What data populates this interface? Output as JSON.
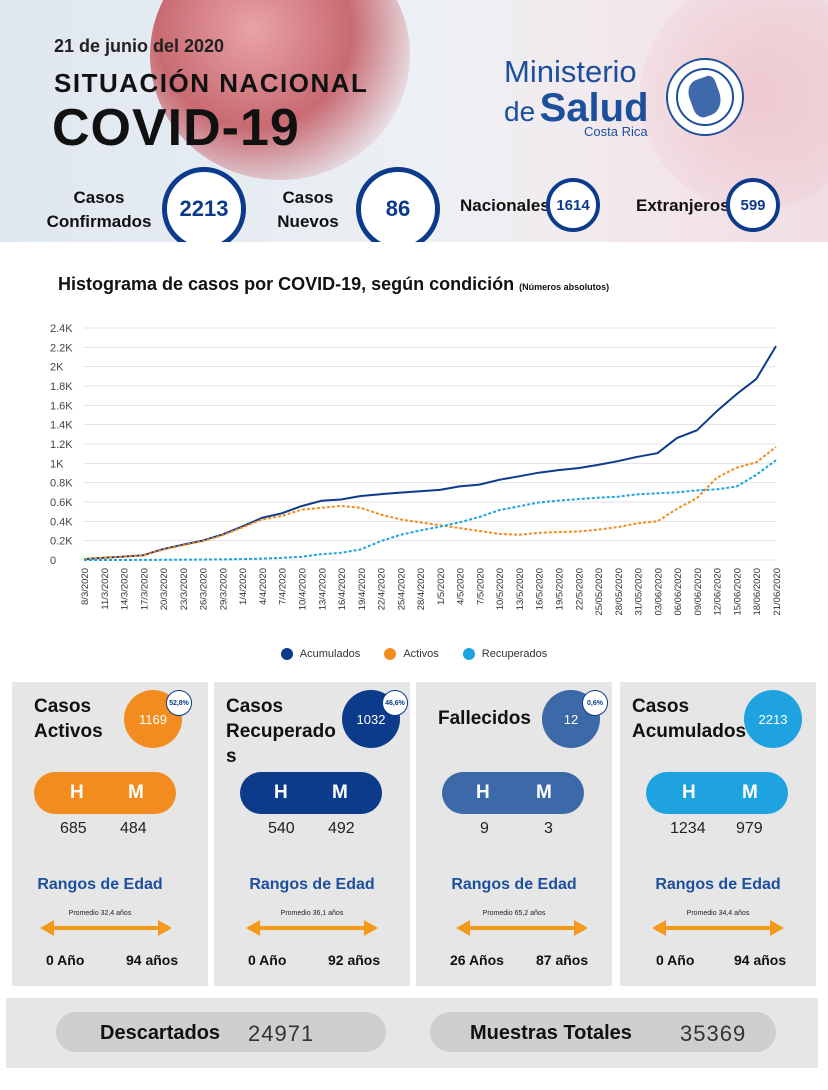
{
  "header": {
    "date": "21 de junio del 2020",
    "subtitle": "SITUACIÓN NACIONAL",
    "title": "COVID-19",
    "logo": {
      "line1": "Ministerio",
      "de": "de",
      "salud": "Salud",
      "country": "Costa Rica"
    },
    "kpis": {
      "confirmados_label_1": "Casos",
      "confirmados_label_2": "Confirmados",
      "confirmados": "2213",
      "nuevos_label_1": "Casos",
      "nuevos_label_2": "Nuevos",
      "nuevos": "86",
      "nacionales_label": "Nacionales",
      "nacionales": "1614",
      "extranjeros_label": "Extranjeros",
      "extranjeros": "599"
    }
  },
  "chart_title": "Histograma de casos por COVID-19, según condición",
  "chart_title_note": "(Números absolutos)",
  "colors": {
    "acumulados": "#0d3b8c",
    "activos": "#f28c1e",
    "recuperados": "#1fa3e0",
    "fallecidos": "#3c6aa8"
  },
  "chart_data": {
    "type": "line",
    "title": "Histograma de casos por COVID-19, según condición",
    "ylim": [
      0,
      2400
    ],
    "yticks": [
      0,
      200,
      400,
      600,
      800,
      1000,
      1200,
      1400,
      1600,
      1800,
      2000,
      2200,
      2400
    ],
    "ytick_labels": [
      "0",
      "0.2K",
      "0.4K",
      "0.6K",
      "0.8K",
      "1K",
      "1.2K",
      "1.4K",
      "1.6K",
      "1.8K",
      "2K",
      "2.2K",
      "2.4K"
    ],
    "xtick_labels": [
      "8/3/2020",
      "11/3/2020",
      "14/3/2020",
      "17/3/2020",
      "20/3/2020",
      "23/3/2020",
      "26/3/2020",
      "29/3/2020",
      "1/4/2020",
      "4/4/2020",
      "7/4/2020",
      "10/4/2020",
      "13/4/2020",
      "16/4/2020",
      "19/4/2020",
      "22/4/2020",
      "25/4/2020",
      "28/4/2020",
      "1/5/2020",
      "4/5/2020",
      "7/5/2020",
      "10/5/2020",
      "13/5/2020",
      "16/5/2020",
      "19/5/2020",
      "22/5/2020",
      "25/05/2020",
      "28/05/2020",
      "31/05/2020",
      "03/06/2020",
      "06/06/2020",
      "09/06/2020",
      "12/06/2020",
      "15/06/2020",
      "18/06/2020",
      "21/06/2020"
    ],
    "series": [
      {
        "name": "Acumulados",
        "style": "solid",
        "values": [
          9,
          23,
          35,
          50,
          113,
          158,
          201,
          263,
          347,
          435,
          483,
          558,
          612,
          626,
          662,
          681,
          697,
          712,
          725,
          761,
          780,
          830,
          866,
          903,
          930,
          951,
          984,
          1022,
          1068,
          1105,
          1263,
          1342,
          1538,
          1715,
          1871,
          2213
        ]
      },
      {
        "name": "Activos",
        "style": "dashed",
        "values": [
          9,
          23,
          33,
          48,
          108,
          152,
          195,
          255,
          336,
          418,
          455,
          520,
          540,
          560,
          540,
          470,
          420,
          390,
          360,
          330,
          300,
          270,
          262,
          280,
          290,
          295,
          315,
          340,
          380,
          400,
          530,
          640,
          850,
          955,
          1010,
          1169
        ]
      },
      {
        "name": "Recuperados",
        "style": "dashed",
        "values": [
          0,
          0,
          0,
          1,
          2,
          3,
          4,
          6,
          9,
          14,
          22,
          34,
          60,
          75,
          110,
          195,
          260,
          305,
          345,
          390,
          445,
          515,
          555,
          595,
          615,
          630,
          645,
          655,
          680,
          690,
          700,
          720,
          730,
          760,
          880,
          1032
        ]
      }
    ],
    "legend_position": "bottom",
    "grid": true
  },
  "cards": [
    {
      "title_1": "Casos",
      "title_2": "Activos",
      "value": "1169",
      "pct": "52,8%",
      "h_label": "H",
      "m_label": "M",
      "h": "685",
      "m": "484",
      "rangos": "Rangos de Edad",
      "promedio": "Promedio 32,4 años",
      "min_age": "0 Año",
      "max_age": "94 años"
    },
    {
      "title_1": "Casos",
      "title_2": "Recuperado",
      "title_3": "s",
      "value": "1032",
      "pct": "46,6%",
      "h_label": "H",
      "m_label": "M",
      "h": "540",
      "m": "492",
      "rangos": "Rangos de Edad",
      "promedio": "Promedio 36,1 años",
      "min_age": "0 Año",
      "max_age": "92 años"
    },
    {
      "title_1": "Fallecidos",
      "value": "12",
      "pct": "0,6%",
      "h_label": "H",
      "m_label": "M",
      "h": "9",
      "m": "3",
      "rangos": "Rangos de Edad",
      "promedio": "Promedio 65,2 años",
      "min_age": "26 Años",
      "max_age": "87 años"
    },
    {
      "title_1": "Casos",
      "title_2": "Acumulados",
      "value": "2213",
      "h_label": "H",
      "m_label": "M",
      "h": "1234",
      "m": "979",
      "rangos": "Rangos de Edad",
      "promedio": "Promedio 34,4 años",
      "min_age": "0 Año",
      "max_age": "94 años"
    }
  ],
  "bottom": {
    "descartados_label": "Descartados",
    "descartados": "24971",
    "muestras_label": "Muestras Totales",
    "muestras": "35369"
  }
}
